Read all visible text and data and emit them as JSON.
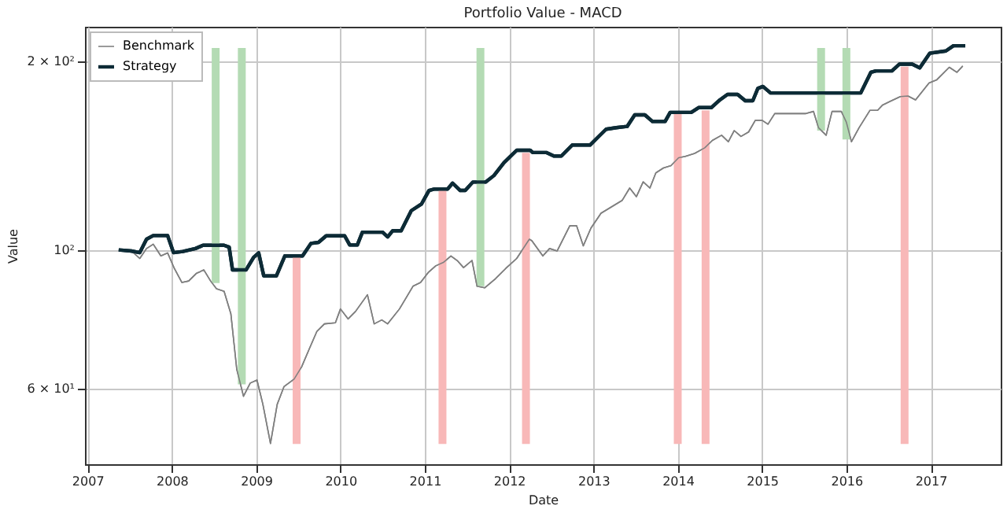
{
  "chart_data": {
    "type": "line",
    "title": "Portfolio Value - MACD",
    "xlabel": "Date",
    "ylabel": "Value",
    "log": true,
    "grid": true,
    "legend": "top left",
    "xlim": [
      2006.97,
      2017.83
    ],
    "xticks": [
      2007,
      2008,
      2009,
      2010,
      2011,
      2012,
      2013,
      2014,
      2015,
      2016,
      2017
    ],
    "ylim": [
      45.5,
      227
    ],
    "yticks": [
      {
        "value": 60,
        "label": "6 × 10¹"
      },
      {
        "value": 100,
        "label": "10²"
      },
      {
        "value": 200,
        "label": "2 × 10²"
      }
    ],
    "series": [
      {
        "name": "Benchmark",
        "color": "#808080",
        "x": [
          2007.37,
          2007.52,
          2007.62,
          2007.7,
          2007.78,
          2007.87,
          2007.95,
          2008.03,
          2008.12,
          2008.2,
          2008.29,
          2008.38,
          2008.46,
          2008.53,
          2008.62,
          2008.7,
          2008.77,
          2008.85,
          2008.93,
          2009.01,
          2009.08,
          2009.17,
          2009.25,
          2009.33,
          2009.45,
          2009.54,
          2009.63,
          2009.72,
          2009.81,
          2009.94,
          2010.0,
          2010.09,
          2010.18,
          2010.32,
          2010.4,
          2010.49,
          2010.56,
          2010.7,
          2010.86,
          2010.95,
          2011.04,
          2011.13,
          2011.22,
          2011.31,
          2011.39,
          2011.46,
          2011.56,
          2011.62,
          2011.71,
          2011.84,
          2011.96,
          2012.09,
          2012.24,
          2012.27,
          2012.4,
          2012.48,
          2012.57,
          2012.72,
          2012.8,
          2012.88,
          2012.97,
          2013.09,
          2013.19,
          2013.34,
          2013.43,
          2013.51,
          2013.59,
          2013.67,
          2013.74,
          2013.83,
          2013.92,
          2014.01,
          2014.09,
          2014.2,
          2014.32,
          2014.41,
          2014.52,
          2014.6,
          2014.67,
          2014.75,
          2014.84,
          2014.92,
          2015.0,
          2015.07,
          2015.15,
          2015.4,
          2015.52,
          2015.61,
          2015.67,
          2015.76,
          2015.83,
          2015.94,
          2016.0,
          2016.06,
          2016.15,
          2016.28,
          2016.37,
          2016.43,
          2016.52,
          2016.64,
          2016.73,
          2016.82,
          2016.98,
          2017.07,
          2017.22,
          2017.31,
          2017.38
        ],
        "values": [
          100,
          99.6,
          96.9,
          100.5,
          102.1,
          97.8,
          98.9,
          93.4,
          88.7,
          89.2,
          91.7,
          92.9,
          89.2,
          86.7,
          85.9,
          79.1,
          64.5,
          58.4,
          61.3,
          62,
          56.7,
          49.1,
          56.7,
          60.5,
          62.2,
          65.1,
          69.5,
          74.1,
          76.2,
          76.5,
          80.5,
          77.6,
          79.8,
          84.8,
          76.2,
          77.3,
          76.2,
          80.5,
          87.5,
          88.7,
          92,
          94.3,
          95.5,
          97.8,
          96,
          93.7,
          96.2,
          87.5,
          87,
          90,
          93.4,
          96.9,
          104,
          103.4,
          97.8,
          100.5,
          99.6,
          109.3,
          109.3,
          101.5,
          108.3,
          114.4,
          116.6,
          119.9,
          125.5,
          121.6,
          128.4,
          125.5,
          132.7,
          135.1,
          136.3,
          140.3,
          141,
          142.5,
          145.5,
          149.5,
          152.4,
          148.8,
          155,
          151.7,
          154.2,
          161,
          161,
          158.7,
          165,
          165,
          165,
          166.3,
          156.6,
          152.4,
          166.3,
          166.3,
          159.8,
          148.8,
          156.6,
          167,
          167,
          170.3,
          172.6,
          175.6,
          176,
          173.5,
          184.6,
          186.7,
          195.6,
          192,
          196.5
        ]
      },
      {
        "name": "Strategy",
        "color": "#0d2b36",
        "x": [
          2007.37,
          2007.52,
          2007.62,
          2007.7,
          2007.78,
          2007.95,
          2008.02,
          2008.13,
          2008.28,
          2008.37,
          2008.62,
          2008.68,
          2008.72,
          2008.88,
          2008.97,
          2009.03,
          2009.09,
          2009.24,
          2009.34,
          2009.55,
          2009.65,
          2009.74,
          2009.83,
          2010.05,
          2010.11,
          2010.2,
          2010.26,
          2010.5,
          2010.56,
          2010.62,
          2010.72,
          2010.84,
          2010.96,
          2011.05,
          2011.11,
          2011.27,
          2011.33,
          2011.42,
          2011.48,
          2011.57,
          2011.72,
          2011.82,
          2011.94,
          2012.0,
          2012.09,
          2012.25,
          2012.28,
          2012.44,
          2012.53,
          2012.62,
          2012.75,
          2012.96,
          2013.15,
          2013.27,
          2013.4,
          2013.49,
          2013.61,
          2013.7,
          2013.85,
          2013.91,
          2014.16,
          2014.25,
          2014.4,
          2014.5,
          2014.59,
          2014.71,
          2014.8,
          2014.89,
          2014.95,
          2015.01,
          2015.1,
          2015.38,
          2016.17,
          2016.29,
          2016.35,
          2016.54,
          2016.63,
          2016.78,
          2016.87,
          2016.99,
          2017.18,
          2017.27,
          2017.41
        ],
        "values": [
          100,
          99.6,
          99,
          104,
          105.4,
          105.4,
          99,
          99.4,
          100.5,
          101.7,
          101.7,
          101,
          92.9,
          92.9,
          97.3,
          98.9,
          90.9,
          90.9,
          97.8,
          97.8,
          102.4,
          102.8,
          105.3,
          105.3,
          101.8,
          101.8,
          106.7,
          106.7,
          104.9,
          107.3,
          107.3,
          115.5,
          118.3,
          124.4,
          125,
          125,
          127.8,
          124.4,
          124.4,
          128.3,
          128.3,
          131.4,
          137.8,
          140.3,
          144.2,
          144.2,
          143,
          143,
          141.2,
          141.2,
          147,
          147,
          155.8,
          156.7,
          157.4,
          164.2,
          164.2,
          160.3,
          160.3,
          165.7,
          165.7,
          168.7,
          168.7,
          173.5,
          177,
          177,
          173,
          173,
          181,
          182.3,
          178,
          178,
          178,
          192,
          193,
          193,
          197.9,
          197.9,
          195.2,
          206,
          207.7,
          211.7,
          211.7
        ]
      },
      {
        "type": "bar",
        "color": "#b4dbb4",
        "x": [
          2008.52,
          2008.83,
          2011.66,
          2015.7,
          2016.0
        ],
        "base": [
          88.5,
          61,
          87.5,
          155,
          150
        ],
        "values": [
          121.5,
          149,
          122.5,
          55,
          60
        ]
      },
      {
        "type": "bar",
        "color": "#f8b8b8",
        "x": [
          2009.48,
          2011.21,
          2012.2,
          2014.0,
          2014.33,
          2016.69
        ],
        "base": [
          49,
          49,
          49,
          49,
          49,
          49
        ],
        "values": [
          48.8,
          75.3,
          93.8,
          116.7,
          118,
          147
        ]
      }
    ]
  }
}
